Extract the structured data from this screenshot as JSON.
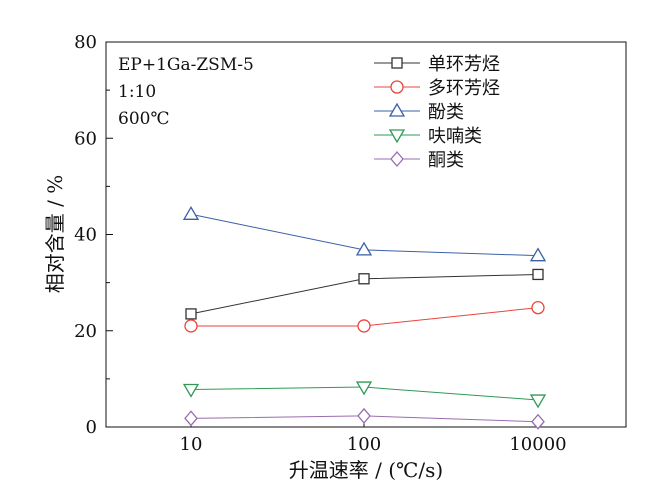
{
  "chart_data": {
    "type": "line",
    "xscale": "categorical",
    "categories": [
      "10",
      "100",
      "10000"
    ],
    "xlabel": "升温速率 / (℃/s)",
    "ylabel": "相对含量 / %",
    "ylim": [
      0,
      80
    ],
    "yticks": [
      0,
      20,
      40,
      60,
      80
    ],
    "annotations": [
      "EP+1Ga-ZSM-5",
      "1:10",
      "600℃"
    ],
    "legend_position": "top-right",
    "series": [
      {
        "name": "单环芳烃",
        "values": [
          23.5,
          30.8,
          31.7
        ],
        "color": "#333333",
        "marker": "square"
      },
      {
        "name": "多环芳烃",
        "values": [
          21.0,
          21.0,
          24.8
        ],
        "color": "#e8453c",
        "marker": "circle"
      },
      {
        "name": "酚类",
        "values": [
          44.2,
          36.8,
          35.6
        ],
        "color": "#3a5fa8",
        "marker": "triangle-up"
      },
      {
        "name": "呋喃类",
        "values": [
          7.8,
          8.3,
          5.6
        ],
        "color": "#2e9a54",
        "marker": "triangle-down"
      },
      {
        "name": "酮类",
        "values": [
          1.8,
          2.3,
          1.1
        ],
        "color": "#9a6cb0",
        "marker": "diamond"
      }
    ]
  }
}
